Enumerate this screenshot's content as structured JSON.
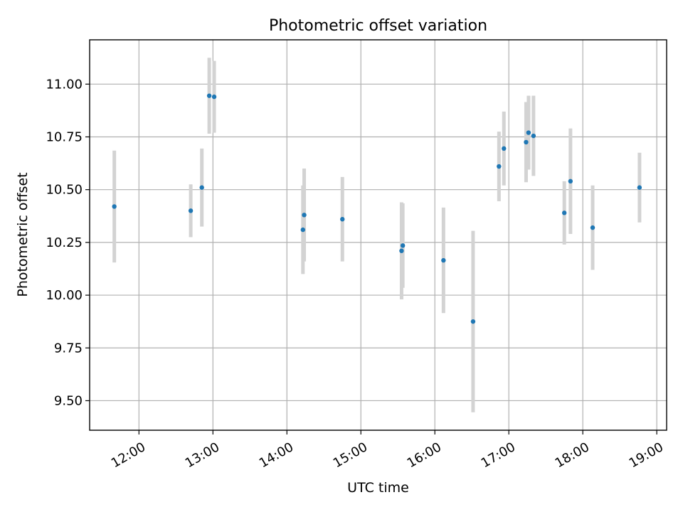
{
  "chart_data": {
    "type": "scatter",
    "title": "Photometric offset variation",
    "xlabel": "UTC time",
    "ylabel": "Photometric offset",
    "x_ticks": [
      "12:00",
      "13:00",
      "14:00",
      "15:00",
      "16:00",
      "17:00",
      "18:00",
      "19:00"
    ],
    "y_ticks": [
      "9.50",
      "9.75",
      "10.00",
      "10.25",
      "10.50",
      "10.75",
      "11.00"
    ],
    "xlim": [
      "11:20",
      "19:08"
    ],
    "ylim": [
      9.36,
      11.21
    ],
    "grid": true,
    "colors": {
      "point": "#1f77b4",
      "errorbar": "#d3d3d3",
      "grid": "#b0b0b0"
    },
    "points": [
      {
        "x": "11:40",
        "y": 10.42,
        "err": 0.265
      },
      {
        "x": "12:42",
        "y": 10.4,
        "err": 0.125
      },
      {
        "x": "12:51",
        "y": 10.51,
        "err": 0.185
      },
      {
        "x": "12:57",
        "y": 10.945,
        "err": 0.18
      },
      {
        "x": "13:01",
        "y": 10.94,
        "err": 0.17
      },
      {
        "x": "14:13",
        "y": 10.31,
        "err": 0.21
      },
      {
        "x": "14:14",
        "y": 10.38,
        "err": 0.22
      },
      {
        "x": "14:45",
        "y": 10.36,
        "err": 0.2
      },
      {
        "x": "15:33",
        "y": 10.21,
        "err": 0.23
      },
      {
        "x": "15:34",
        "y": 10.235,
        "err": 0.2
      },
      {
        "x": "16:07",
        "y": 10.165,
        "err": 0.25
      },
      {
        "x": "16:31",
        "y": 9.875,
        "err": 0.43
      },
      {
        "x": "16:52",
        "y": 10.61,
        "err": 0.165
      },
      {
        "x": "16:56",
        "y": 10.695,
        "err": 0.175
      },
      {
        "x": "17:14",
        "y": 10.725,
        "err": 0.19
      },
      {
        "x": "17:16",
        "y": 10.77,
        "err": 0.175
      },
      {
        "x": "17:20",
        "y": 10.755,
        "err": 0.19
      },
      {
        "x": "17:45",
        "y": 10.39,
        "err": 0.15
      },
      {
        "x": "17:50",
        "y": 10.54,
        "err": 0.25
      },
      {
        "x": "18:08",
        "y": 10.32,
        "err": 0.2
      },
      {
        "x": "18:46",
        "y": 10.51,
        "err": 0.165
      }
    ]
  }
}
